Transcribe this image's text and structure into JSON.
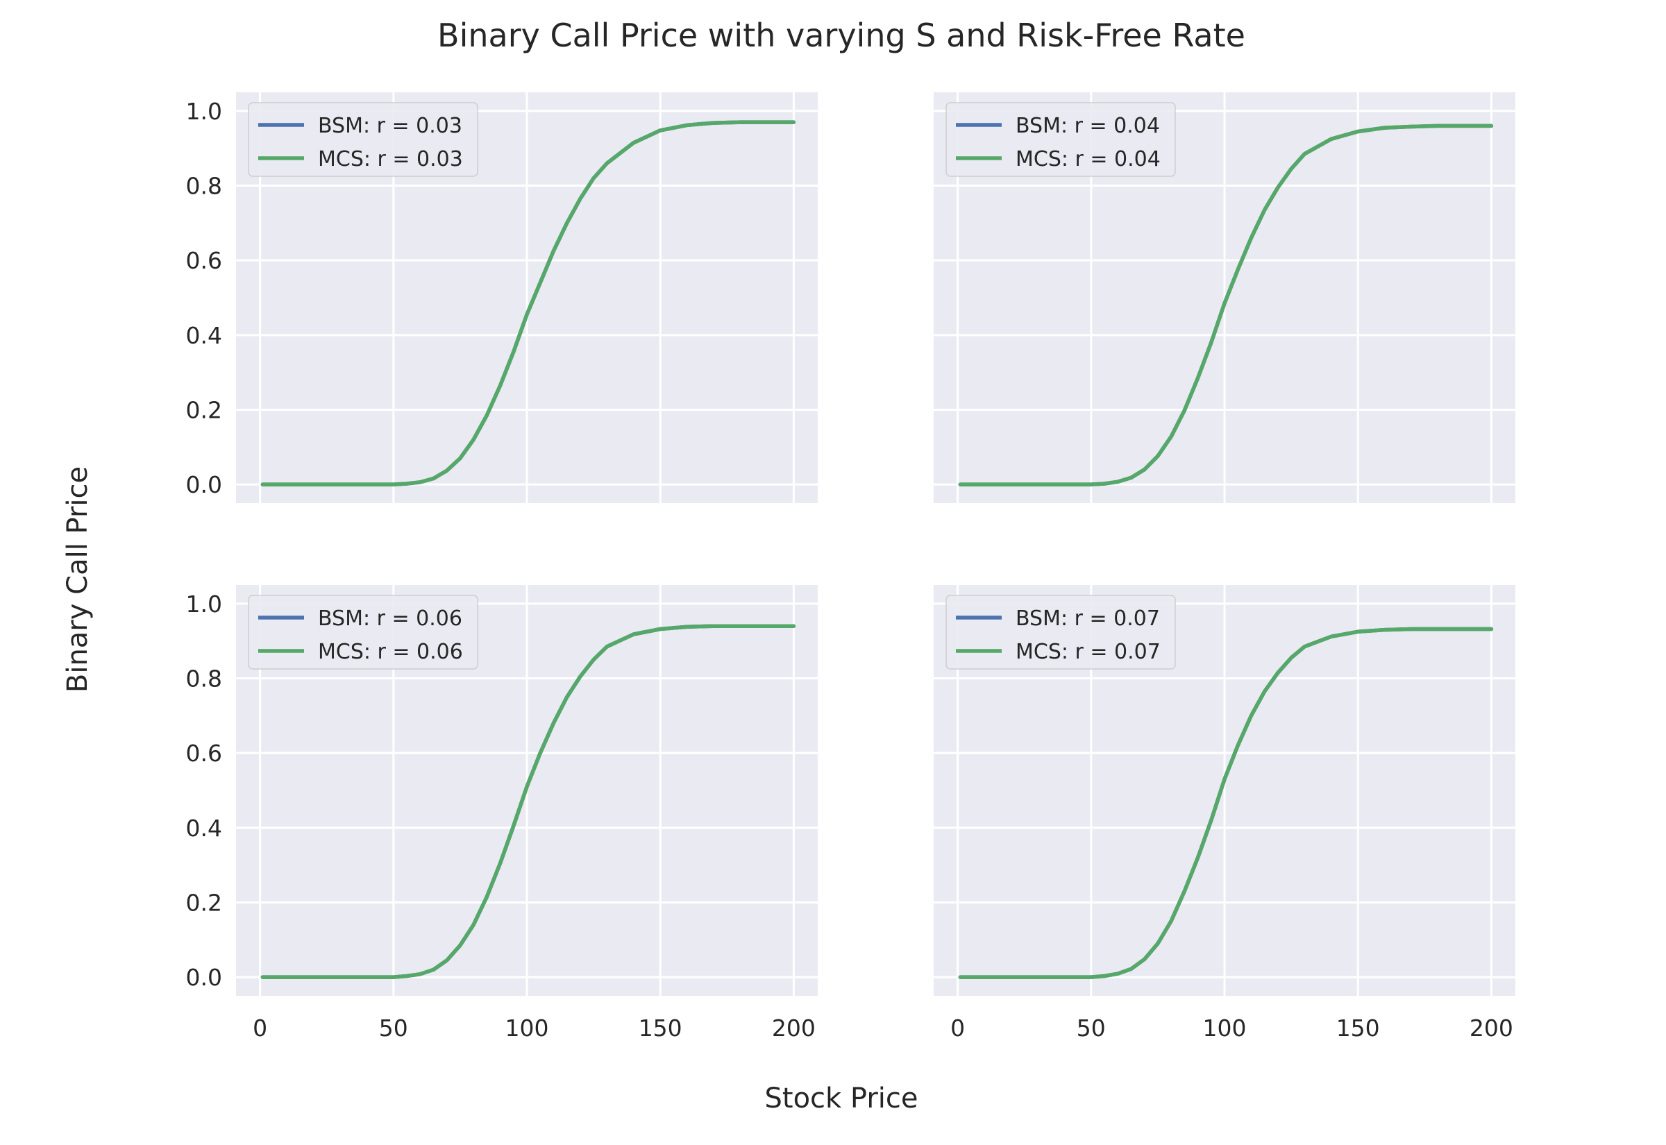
{
  "figure": {
    "title": "Binary Call Price with varying S and Risk-Free Rate",
    "xlabel": "Stock Price",
    "ylabel": "Binary Call Price",
    "background": "#ffffff",
    "axes_background": "#eaeaf2",
    "grid_color": "#ffffff"
  },
  "colors": {
    "bsm": "#4c72b0",
    "mcs": "#55a868"
  },
  "chart_data": [
    {
      "type": "line",
      "xlim": [
        -9,
        209
      ],
      "ylim": [
        -0.05,
        1.05
      ],
      "xticks": [
        0,
        50,
        100,
        150,
        200
      ],
      "yticks": [
        0.0,
        0.2,
        0.4,
        0.6,
        0.8,
        1.0
      ],
      "show_xticklabels": false,
      "show_yticklabels": true,
      "grid": true,
      "legend_loc": "upper-left",
      "series": [
        {
          "name": "BSM: r = 0.03",
          "color": "#4c72b0",
          "x": [
            1,
            40,
            50,
            55,
            60,
            65,
            70,
            75,
            80,
            85,
            90,
            95,
            100,
            105,
            110,
            115,
            120,
            125,
            130,
            140,
            150,
            160,
            170,
            180,
            200
          ],
          "y": [
            0.0,
            0.0,
            0.0,
            0.002,
            0.006,
            0.016,
            0.037,
            0.07,
            0.12,
            0.185,
            0.265,
            0.355,
            0.455,
            0.54,
            0.625,
            0.7,
            0.765,
            0.82,
            0.86,
            0.915,
            0.948,
            0.962,
            0.968,
            0.97,
            0.97
          ]
        },
        {
          "name": "MCS: r = 0.03",
          "color": "#55a868",
          "x": [
            1,
            40,
            50,
            55,
            60,
            65,
            70,
            75,
            80,
            85,
            90,
            95,
            100,
            105,
            110,
            115,
            120,
            125,
            130,
            140,
            150,
            160,
            170,
            180,
            200
          ],
          "y": [
            0.0,
            0.0,
            0.0,
            0.002,
            0.006,
            0.016,
            0.037,
            0.07,
            0.12,
            0.185,
            0.265,
            0.355,
            0.455,
            0.54,
            0.625,
            0.7,
            0.765,
            0.82,
            0.86,
            0.915,
            0.948,
            0.962,
            0.968,
            0.97,
            0.97
          ]
        }
      ]
    },
    {
      "type": "line",
      "xlim": [
        -9,
        209
      ],
      "ylim": [
        -0.05,
        1.05
      ],
      "xticks": [
        0,
        50,
        100,
        150,
        200
      ],
      "yticks": [
        0.0,
        0.2,
        0.4,
        0.6,
        0.8,
        1.0
      ],
      "show_xticklabels": false,
      "show_yticklabels": false,
      "grid": true,
      "legend_loc": "upper-left",
      "series": [
        {
          "name": "BSM: r = 0.04",
          "color": "#4c72b0",
          "x": [
            1,
            40,
            50,
            55,
            60,
            65,
            70,
            75,
            80,
            85,
            90,
            95,
            100,
            105,
            110,
            115,
            120,
            125,
            130,
            140,
            150,
            160,
            170,
            180,
            200
          ],
          "y": [
            0.0,
            0.0,
            0.0,
            0.002,
            0.007,
            0.018,
            0.04,
            0.076,
            0.128,
            0.198,
            0.285,
            0.38,
            0.485,
            0.575,
            0.66,
            0.735,
            0.795,
            0.845,
            0.885,
            0.925,
            0.945,
            0.955,
            0.958,
            0.96,
            0.96
          ]
        },
        {
          "name": "MCS: r = 0.04",
          "color": "#55a868",
          "x": [
            1,
            40,
            50,
            55,
            60,
            65,
            70,
            75,
            80,
            85,
            90,
            95,
            100,
            105,
            110,
            115,
            120,
            125,
            130,
            140,
            150,
            160,
            170,
            180,
            200
          ],
          "y": [
            0.0,
            0.0,
            0.0,
            0.002,
            0.007,
            0.018,
            0.04,
            0.076,
            0.128,
            0.198,
            0.285,
            0.38,
            0.485,
            0.575,
            0.66,
            0.735,
            0.795,
            0.845,
            0.885,
            0.925,
            0.945,
            0.955,
            0.958,
            0.96,
            0.96
          ]
        }
      ]
    },
    {
      "type": "line",
      "xlim": [
        -9,
        209
      ],
      "ylim": [
        -0.05,
        1.05
      ],
      "xticks": [
        0,
        50,
        100,
        150,
        200
      ],
      "yticks": [
        0.0,
        0.2,
        0.4,
        0.6,
        0.8,
        1.0
      ],
      "show_xticklabels": true,
      "show_yticklabels": true,
      "grid": true,
      "legend_loc": "upper-left",
      "series": [
        {
          "name": "BSM: r = 0.06",
          "color": "#4c72b0",
          "x": [
            1,
            40,
            50,
            55,
            60,
            65,
            70,
            75,
            80,
            85,
            90,
            95,
            100,
            105,
            110,
            115,
            120,
            125,
            130,
            140,
            150,
            160,
            170,
            180,
            200
          ],
          "y": [
            0.0,
            0.0,
            0.0,
            0.003,
            0.008,
            0.02,
            0.045,
            0.085,
            0.14,
            0.215,
            0.305,
            0.405,
            0.51,
            0.6,
            0.68,
            0.75,
            0.805,
            0.85,
            0.885,
            0.918,
            0.932,
            0.938,
            0.94,
            0.94,
            0.94
          ]
        },
        {
          "name": "MCS: r = 0.06",
          "color": "#55a868",
          "x": [
            1,
            40,
            50,
            55,
            60,
            65,
            70,
            75,
            80,
            85,
            90,
            95,
            100,
            105,
            110,
            115,
            120,
            125,
            130,
            140,
            150,
            160,
            170,
            180,
            200
          ],
          "y": [
            0.0,
            0.0,
            0.0,
            0.003,
            0.008,
            0.02,
            0.045,
            0.085,
            0.14,
            0.215,
            0.305,
            0.405,
            0.51,
            0.6,
            0.68,
            0.75,
            0.805,
            0.85,
            0.885,
            0.918,
            0.932,
            0.938,
            0.94,
            0.94,
            0.94
          ]
        }
      ]
    },
    {
      "type": "line",
      "xlim": [
        -9,
        209
      ],
      "ylim": [
        -0.05,
        1.05
      ],
      "xticks": [
        0,
        50,
        100,
        150,
        200
      ],
      "yticks": [
        0.0,
        0.2,
        0.4,
        0.6,
        0.8,
        1.0
      ],
      "show_xticklabels": true,
      "show_yticklabels": false,
      "grid": true,
      "legend_loc": "upper-left",
      "series": [
        {
          "name": "BSM: r = 0.07",
          "color": "#4c72b0",
          "x": [
            1,
            40,
            50,
            55,
            60,
            65,
            70,
            75,
            80,
            85,
            90,
            95,
            100,
            105,
            110,
            115,
            120,
            125,
            130,
            140,
            150,
            160,
            170,
            180,
            200
          ],
          "y": [
            0.0,
            0.0,
            0.0,
            0.003,
            0.009,
            0.022,
            0.048,
            0.09,
            0.15,
            0.23,
            0.32,
            0.42,
            0.53,
            0.62,
            0.7,
            0.765,
            0.815,
            0.855,
            0.885,
            0.912,
            0.925,
            0.93,
            0.932,
            0.932,
            0.932
          ]
        },
        {
          "name": "MCS: r = 0.07",
          "color": "#55a868",
          "x": [
            1,
            40,
            50,
            55,
            60,
            65,
            70,
            75,
            80,
            85,
            90,
            95,
            100,
            105,
            110,
            115,
            120,
            125,
            130,
            140,
            150,
            160,
            170,
            180,
            200
          ],
          "y": [
            0.0,
            0.0,
            0.0,
            0.003,
            0.009,
            0.022,
            0.048,
            0.09,
            0.15,
            0.23,
            0.32,
            0.42,
            0.53,
            0.62,
            0.7,
            0.765,
            0.815,
            0.855,
            0.885,
            0.912,
            0.925,
            0.93,
            0.932,
            0.932,
            0.932
          ]
        }
      ]
    }
  ]
}
